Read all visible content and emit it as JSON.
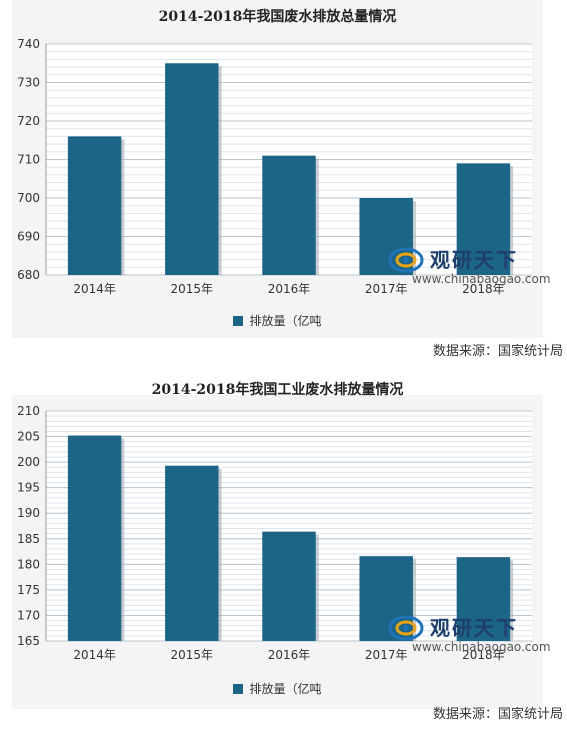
{
  "source_note": "数据来源：国家统计局",
  "watermark": {
    "cn": "观研天下",
    "en": "www.chinabaogao.com"
  },
  "colors": {
    "bar": "#1d6586",
    "background": "#f4f4f4",
    "grid": "#b9c7d2"
  },
  "chart_data": [
    {
      "type": "bar",
      "title": "2014-2018年我国废水排放总量情况",
      "categories": [
        "2014年",
        "2015年",
        "2016年",
        "2017年",
        "2018年"
      ],
      "series": [
        {
          "name": "排放量（亿吨",
          "values": [
            716,
            735,
            711,
            700,
            709
          ]
        }
      ],
      "ylim": [
        680,
        740
      ],
      "yticks": [
        680,
        690,
        700,
        710,
        720,
        730,
        740
      ],
      "grid": true,
      "legend": "bottom"
    },
    {
      "type": "bar",
      "title": "2014-2018年我国工业废水排放量情况",
      "categories": [
        "2014年",
        "2015年",
        "2016年",
        "2017年",
        "2018年"
      ],
      "series": [
        {
          "name": "排放量（亿吨",
          "values": [
            205.2,
            199.3,
            186.4,
            181.6,
            181.4
          ]
        }
      ],
      "ylim": [
        165,
        210
      ],
      "yticks": [
        165,
        170,
        175,
        180,
        185,
        190,
        195,
        200,
        205,
        210
      ],
      "grid": true,
      "legend": "bottom"
    }
  ]
}
